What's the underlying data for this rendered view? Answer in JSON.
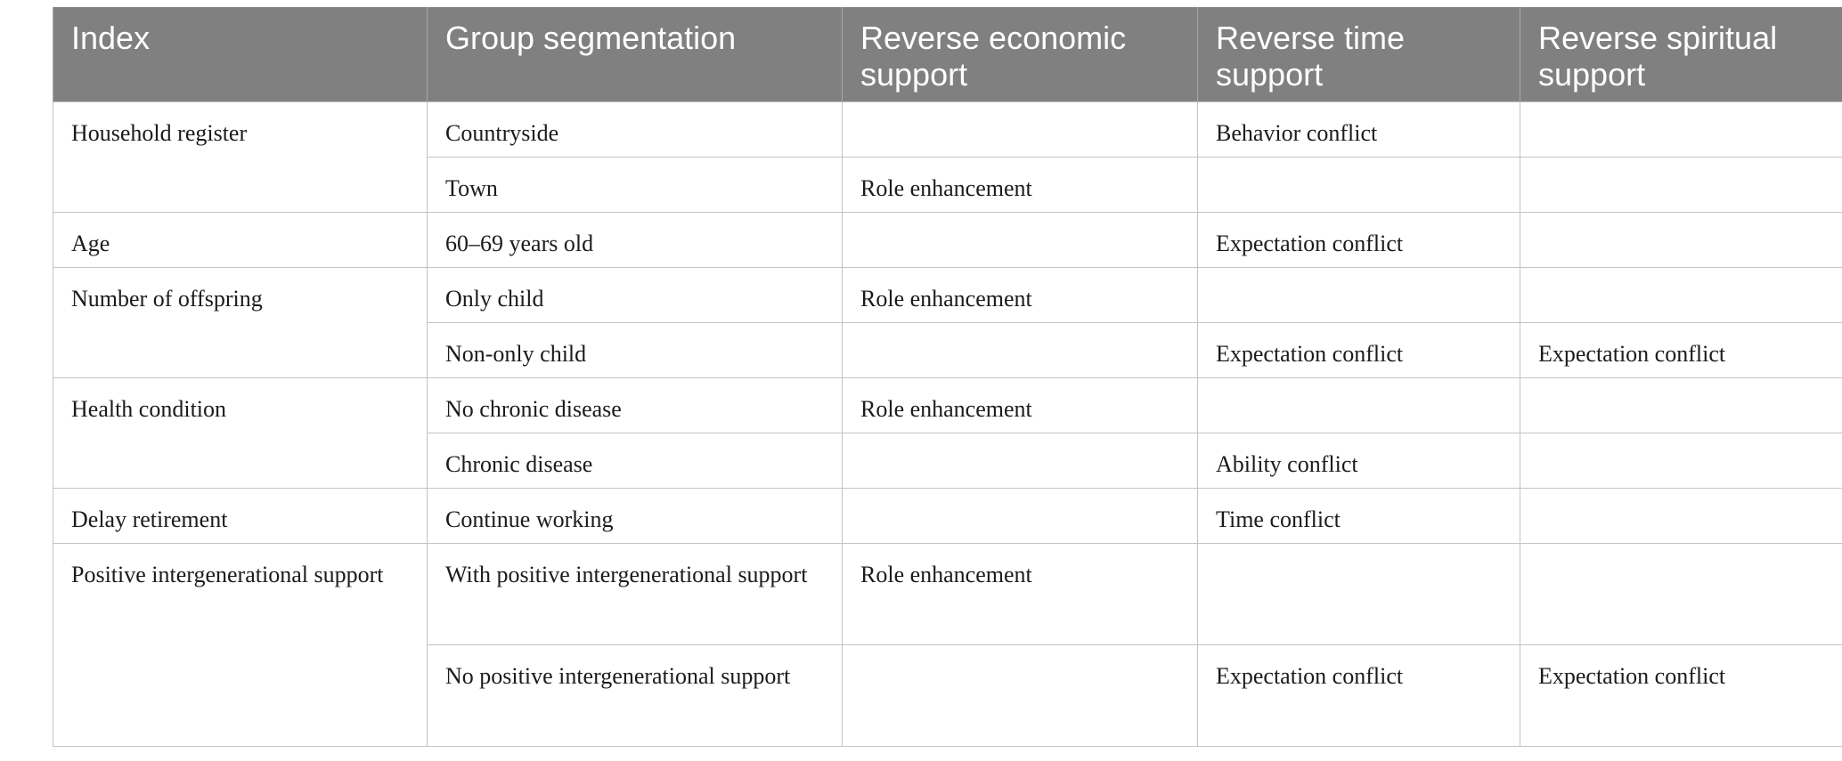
{
  "table": {
    "headers": [
      "Index",
      "Group segmentation",
      "Reverse economic support",
      "Reverse time support",
      "Reverse spiritual support"
    ],
    "rows": [
      {
        "index": "Household register",
        "group": "Countryside",
        "economic": "",
        "time": "Behavior conflict",
        "spiritual": ""
      },
      {
        "index": "",
        "group": "Town",
        "economic": "Role enhancement",
        "time": "",
        "spiritual": ""
      },
      {
        "index": "Age",
        "group": "60–69 years old",
        "economic": "",
        "time": "Expectation conflict",
        "spiritual": ""
      },
      {
        "index": "Number of offspring",
        "group": "Only child",
        "economic": "Role enhancement",
        "time": "",
        "spiritual": ""
      },
      {
        "index": "",
        "group": "Non-only child",
        "economic": "",
        "time": "Expectation conflict",
        "spiritual": "Expectation conflict"
      },
      {
        "index": "Health condition",
        "group": "No chronic disease",
        "economic": "Role enhancement",
        "time": "",
        "spiritual": ""
      },
      {
        "index": "",
        "group": "Chronic disease",
        "economic": "",
        "time": "Ability conflict",
        "spiritual": ""
      },
      {
        "index": "Delay retirement",
        "group": "Continue working",
        "economic": "",
        "time": "Time conflict",
        "spiritual": ""
      },
      {
        "index": "Positive intergenerational support",
        "group": "With positive intergenerational support",
        "economic": "Role enhancement",
        "time": "",
        "spiritual": ""
      },
      {
        "index": "",
        "group": "No positive intergenerational support",
        "economic": "",
        "time": "Expectation conflict",
        "spiritual": "Expectation conflict"
      }
    ]
  }
}
